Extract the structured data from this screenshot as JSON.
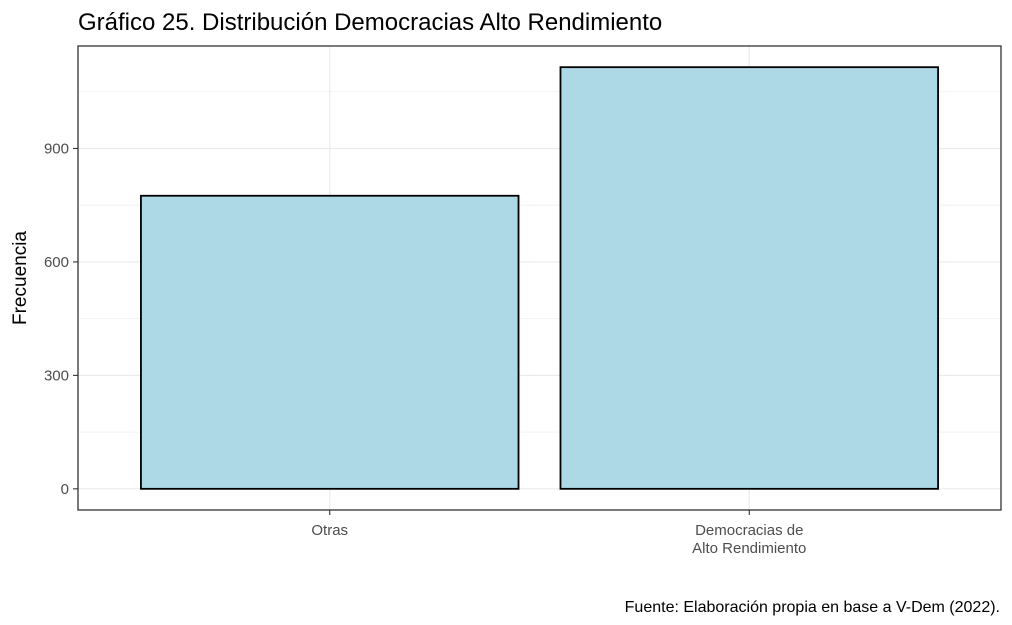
{
  "chart_data": {
    "type": "bar",
    "title": "Gráfico 25. Distribución Democracias Alto Rendimiento",
    "xlabel": "",
    "ylabel": "Frecuencia",
    "categories": [
      [
        "Otras"
      ],
      [
        "Democracias de",
        "Alto Rendimiento"
      ]
    ],
    "values": [
      775,
      1115
    ],
    "yticks": [
      0,
      300,
      600,
      900
    ],
    "ylim": [
      -56,
      1171
    ],
    "grid": true,
    "bar_color": "#add8e6",
    "bar_edge_color": "#000000",
    "caption": "Fuente: Elaboración propia en base a V-Dem (2022)."
  }
}
